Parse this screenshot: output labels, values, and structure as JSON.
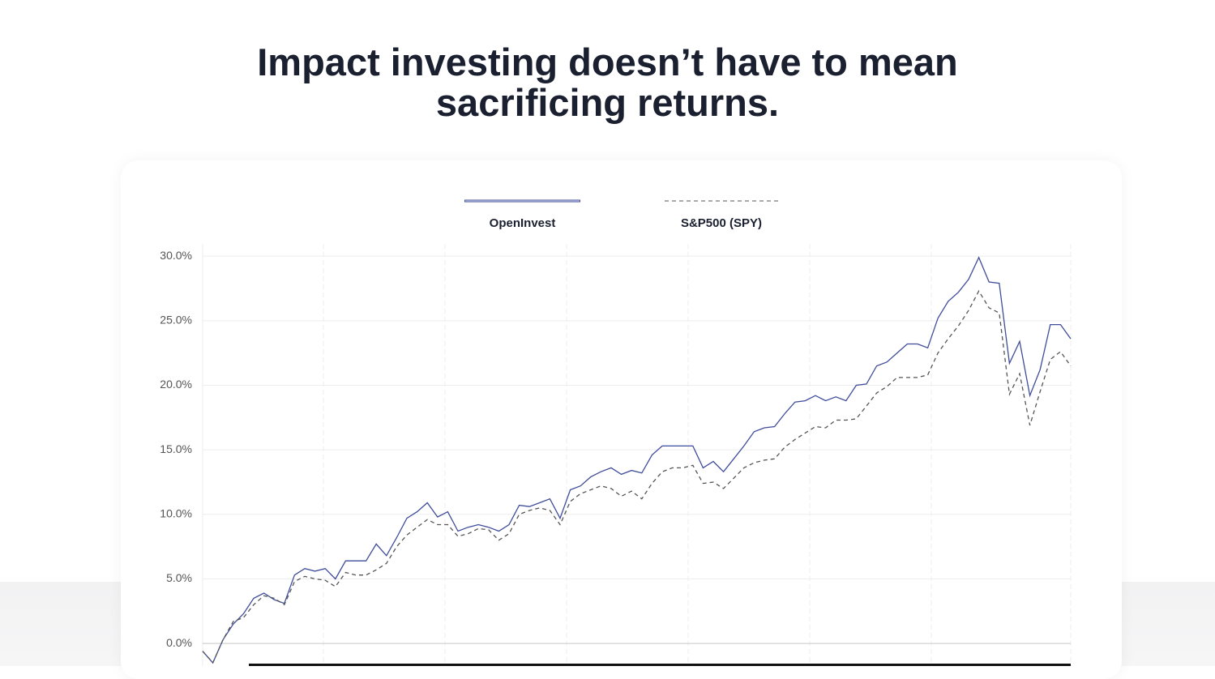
{
  "chart_data": {
    "type": "line",
    "title": "Impact investing doesn’t have to mean sacrificing returns.",
    "series": [
      {
        "name": "OpenInvest",
        "color": "#3f4c9a",
        "line_style": "solid",
        "values": [
          -0.6,
          -1.5,
          0.3,
          1.5,
          2.3,
          3.5,
          3.9,
          3.4,
          3.1,
          5.3,
          5.8,
          5.6,
          5.8,
          5.0,
          6.4,
          6.4,
          6.4,
          7.7,
          6.8,
          8.2,
          9.7,
          10.2,
          10.9,
          9.8,
          10.2,
          8.7,
          9.0,
          9.2,
          9.0,
          8.7,
          9.2,
          10.7,
          10.6,
          10.9,
          11.2,
          9.7,
          11.9,
          12.2,
          12.9,
          13.3,
          13.6,
          13.1,
          13.4,
          13.2,
          14.6,
          15.3,
          15.3,
          15.3,
          15.3,
          13.6,
          14.1,
          13.3,
          14.3,
          15.3,
          16.4,
          16.7,
          16.8,
          17.8,
          18.7,
          18.8,
          19.2,
          18.8,
          19.1,
          18.8,
          20.0,
          20.1,
          21.5,
          21.8,
          22.5,
          23.2,
          23.2,
          22.9,
          25.2,
          26.5,
          27.2,
          28.2,
          29.9,
          28.0,
          27.9,
          21.7,
          23.4,
          19.2,
          21.2,
          24.7,
          24.7,
          23.6
        ]
      },
      {
        "name": "S&P500 (SPY)",
        "color": "#555555",
        "line_style": "dashed",
        "values": [
          -0.6,
          -1.5,
          0.3,
          1.7,
          2.0,
          3.0,
          3.7,
          3.5,
          3.0,
          4.8,
          5.2,
          5.0,
          4.9,
          4.4,
          5.5,
          5.3,
          5.3,
          5.7,
          6.2,
          7.5,
          8.4,
          9.0,
          9.6,
          9.2,
          9.2,
          8.3,
          8.5,
          8.9,
          8.8,
          8.0,
          8.5,
          10.0,
          10.3,
          10.5,
          10.3,
          9.2,
          11.0,
          11.6,
          11.9,
          12.2,
          12.0,
          11.4,
          11.8,
          11.2,
          12.4,
          13.3,
          13.6,
          13.6,
          13.8,
          12.4,
          12.5,
          12.0,
          12.8,
          13.6,
          14.0,
          14.2,
          14.3,
          15.2,
          15.8,
          16.3,
          16.8,
          16.7,
          17.3,
          17.3,
          17.4,
          18.4,
          19.4,
          19.9,
          20.6,
          20.6,
          20.6,
          20.8,
          22.5,
          23.6,
          24.6,
          25.8,
          27.3,
          26.0,
          25.6,
          19.3,
          20.9,
          16.9,
          19.5,
          22.0,
          22.6,
          21.5
        ]
      }
    ],
    "ylim": [
      -2,
      31
    ],
    "yticks": [
      {
        "value": 0,
        "label": "0.0%"
      },
      {
        "value": 5,
        "label": "5.0%"
      },
      {
        "value": 10,
        "label": "10.0%"
      },
      {
        "value": 15,
        "label": "15.0%"
      },
      {
        "value": 20,
        "label": "20.0%"
      },
      {
        "value": 25,
        "label": "25.0%"
      },
      {
        "value": 30,
        "label": "30.0%"
      }
    ],
    "grid": true
  }
}
